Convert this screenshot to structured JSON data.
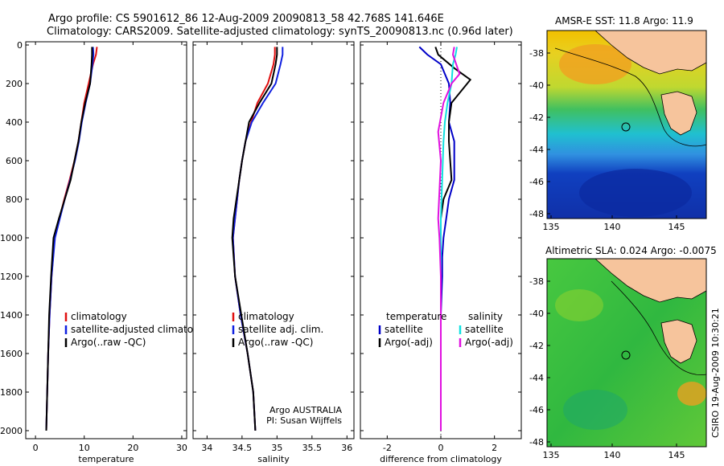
{
  "title": {
    "line1": "Argo profile: CS 5901612_86 12-Aug-2009 20090813_58 42.768S 141.646E",
    "line2": "Climatology: CARS2009. Satellite-adjusted climatology: synTS_20090813.nc (0.96d later)"
  },
  "credit": "CSIRO 19-Aug-2009 10:30:21",
  "colors": {
    "clim": "#e01010",
    "sat": "#1020e0",
    "argo": "#000000",
    "tdiff": "#0000c8",
    "ssat": "#10e0e0",
    "sargo": "#e010e0"
  },
  "chart_data": [
    {
      "id": "temperature",
      "type": "line",
      "xlabel": "temperature",
      "ylabel": "",
      "xlim": [
        -2,
        31
      ],
      "ylim": [
        2050,
        0
      ],
      "reverse_y": true,
      "xticks": [
        0,
        10,
        20,
        30
      ],
      "yticks": [
        0,
        200,
        400,
        600,
        800,
        1000,
        1200,
        1400,
        1600,
        1800,
        2000
      ],
      "legend": [
        "climatology",
        "satellite-adjusted climatology",
        "Argo(..raw -QC)"
      ],
      "series": [
        {
          "name": "climatology",
          "color_key": "clim",
          "x": [
            12.6,
            12.4,
            11.8,
            10.9,
            10.0,
            9.4,
            8.8,
            8.0,
            7.0,
            5.9,
            4.9,
            3.9,
            3.3,
            2.9,
            2.6,
            2.4,
            2.3,
            2.2
          ],
          "y": [
            10,
            50,
            100,
            200,
            300,
            400,
            500,
            600,
            700,
            800,
            900,
            1000,
            1200,
            1400,
            1600,
            1800,
            1900,
            2000
          ]
        },
        {
          "name": "satellite-adjusted climatology",
          "color_key": "sat",
          "x": [
            11.8,
            11.9,
            11.7,
            11.2,
            10.3,
            9.5,
            8.9,
            8.1,
            7.1,
            6.0,
            5.0,
            4.0,
            3.3,
            2.9,
            2.6,
            2.4,
            2.3,
            2.2
          ],
          "y": [
            10,
            50,
            100,
            200,
            300,
            400,
            500,
            600,
            700,
            800,
            900,
            1000,
            1200,
            1400,
            1600,
            1800,
            1900,
            2000
          ]
        },
        {
          "name": "Argo(..raw -QC)",
          "color_key": "argo",
          "x": [
            11.6,
            11.6,
            11.5,
            11.2,
            10.2,
            9.4,
            8.8,
            8.0,
            7.2,
            6.0,
            4.8,
            3.7,
            3.2,
            2.8,
            2.6,
            2.4,
            2.3,
            2.2
          ],
          "y": [
            10,
            50,
            100,
            200,
            300,
            400,
            500,
            600,
            700,
            800,
            900,
            1000,
            1200,
            1400,
            1600,
            1800,
            1900,
            2000
          ]
        }
      ]
    },
    {
      "id": "salinity",
      "type": "line",
      "xlabel": "salinity",
      "ylabel": "",
      "xlim": [
        33.8,
        36.1
      ],
      "ylim": [
        2050,
        0
      ],
      "reverse_y": true,
      "xticks": [
        34,
        34.5,
        35,
        35.5,
        36
      ],
      "xticklabels": [
        "34",
        "34.5",
        "35",
        "35.5",
        "36"
      ],
      "legend": [
        "climatology",
        "satellite adj. clim.",
        "Argo(..raw -QC)"
      ],
      "annotation": [
        "Argo AUSTRALIA",
        "PI: Susan Wijffels"
      ],
      "series": [
        {
          "name": "climatology",
          "color_key": "clim",
          "x": [
            34.97,
            34.97,
            34.95,
            34.87,
            34.72,
            34.63,
            34.55,
            34.5,
            34.46,
            34.43,
            34.4,
            34.37,
            34.4,
            34.48,
            34.58,
            34.66,
            34.69
          ],
          "y": [
            10,
            50,
            100,
            200,
            300,
            400,
            500,
            600,
            700,
            800,
            900,
            1000,
            1200,
            1400,
            1600,
            1800,
            2000
          ]
        },
        {
          "name": "satellite adj. clim.",
          "color_key": "sat",
          "x": [
            35.08,
            35.08,
            35.05,
            34.98,
            34.8,
            34.64,
            34.55,
            34.5,
            34.46,
            34.43,
            34.4,
            34.37,
            34.4,
            34.48,
            34.58,
            34.66,
            34.69
          ],
          "y": [
            10,
            50,
            100,
            200,
            300,
            400,
            500,
            600,
            700,
            800,
            900,
            1000,
            1200,
            1400,
            1600,
            1800,
            2000
          ]
        },
        {
          "name": "Argo(..raw -QC)",
          "color_key": "argo",
          "x": [
            35.0,
            35.0,
            34.98,
            34.92,
            34.75,
            34.6,
            34.55,
            34.5,
            34.46,
            34.42,
            34.38,
            34.36,
            34.4,
            34.49,
            34.58,
            34.66,
            34.69
          ],
          "y": [
            10,
            50,
            100,
            200,
            300,
            400,
            500,
            600,
            700,
            800,
            900,
            1000,
            1200,
            1400,
            1600,
            1800,
            2000
          ]
        }
      ]
    },
    {
      "id": "difference",
      "type": "line",
      "xlabel": "difference from climatology",
      "ylabel": "",
      "xlim": [
        -3,
        3
      ],
      "ylim": [
        2050,
        0
      ],
      "reverse_y": true,
      "xticks": [
        -2,
        0,
        2
      ],
      "zero_line": 0,
      "legend_left_title": "temperature",
      "legend_right_title": "salinity",
      "legend": [
        "satellite",
        "Argo(-adj)",
        "satellite",
        "Argo(-adj)"
      ],
      "series": [
        {
          "name": "temperature satellite",
          "color_key": "tdiff",
          "x": [
            -0.8,
            -0.5,
            0.0,
            0.3,
            0.35,
            0.3,
            0.5,
            0.5,
            0.3,
            0.2,
            0.1,
            0.05,
            0.05,
            0.0,
            0.0,
            0.0,
            0.0
          ],
          "y": [
            10,
            50,
            100,
            200,
            300,
            400,
            500,
            700,
            800,
            900,
            1000,
            1100,
            1200,
            1400,
            1600,
            1800,
            2000
          ]
        },
        {
          "name": "temperature Argo(-adj)",
          "color_key": "argo",
          "x": [
            -0.2,
            -0.1,
            0.5,
            1.1,
            0.4,
            0.3,
            0.3,
            0.4,
            0.1,
            0.0,
            0.0,
            0.0,
            0.0,
            0.0,
            0.0,
            0.0
          ],
          "y": [
            10,
            50,
            120,
            180,
            300,
            400,
            500,
            700,
            800,
            900,
            1000,
            1200,
            1400,
            1600,
            1800,
            2000
          ]
        },
        {
          "name": "salinity satellite",
          "color_key": "ssat",
          "x": [
            0.6,
            0.55,
            0.45,
            0.4,
            0.25,
            0.15,
            0.1,
            0.05,
            0.0,
            0.0,
            0.0,
            0.0
          ],
          "y": [
            10,
            50,
            100,
            200,
            300,
            400,
            500,
            700,
            900,
            1200,
            1600,
            2000
          ]
        },
        {
          "name": "salinity Argo(-adj)",
          "color_key": "sargo",
          "x": [
            0.5,
            0.45,
            0.7,
            0.4,
            0.1,
            -0.1,
            0.0,
            -0.1,
            -0.05,
            0.0,
            0.0,
            0.0
          ],
          "y": [
            10,
            50,
            150,
            200,
            300,
            450,
            600,
            900,
            1000,
            1200,
            1600,
            2000
          ]
        }
      ]
    }
  ],
  "maps": [
    {
      "id": "sst-map",
      "title": "AMSR-E SST: 11.8 Argo: 11.9",
      "xticks": [
        "135",
        "140",
        "145"
      ],
      "yticks": [
        "-38",
        "-40",
        "-42",
        "-44",
        "-46",
        "-48"
      ]
    },
    {
      "id": "sla-map",
      "title": "Altimetric SLA: 0.024 Argo: -0.0075",
      "xticks": [
        "135",
        "140",
        "145"
      ],
      "yticks": [
        "-38",
        "-40",
        "-42",
        "-44",
        "-46",
        "-48"
      ]
    }
  ]
}
